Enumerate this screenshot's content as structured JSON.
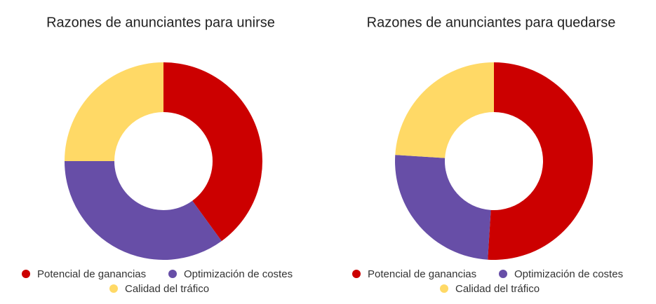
{
  "chart_data": [
    {
      "type": "donut",
      "title": "Razones de anunciantes para unirse",
      "categories": [
        "Potencial de ganancias",
        "Optimización de costes",
        "Calidad del tráfico"
      ],
      "values": [
        40,
        35,
        25
      ],
      "colors": [
        "#cc0000",
        "#674ea7",
        "#ffd966"
      ]
    },
    {
      "type": "donut",
      "title": "Razones de anunciantes para quedarse",
      "categories": [
        "Potencial de ganancias",
        "Optimización de costes",
        "Calidad del tráfico"
      ],
      "values": [
        51,
        25,
        24
      ],
      "colors": [
        "#cc0000",
        "#674ea7",
        "#ffd966"
      ]
    }
  ]
}
